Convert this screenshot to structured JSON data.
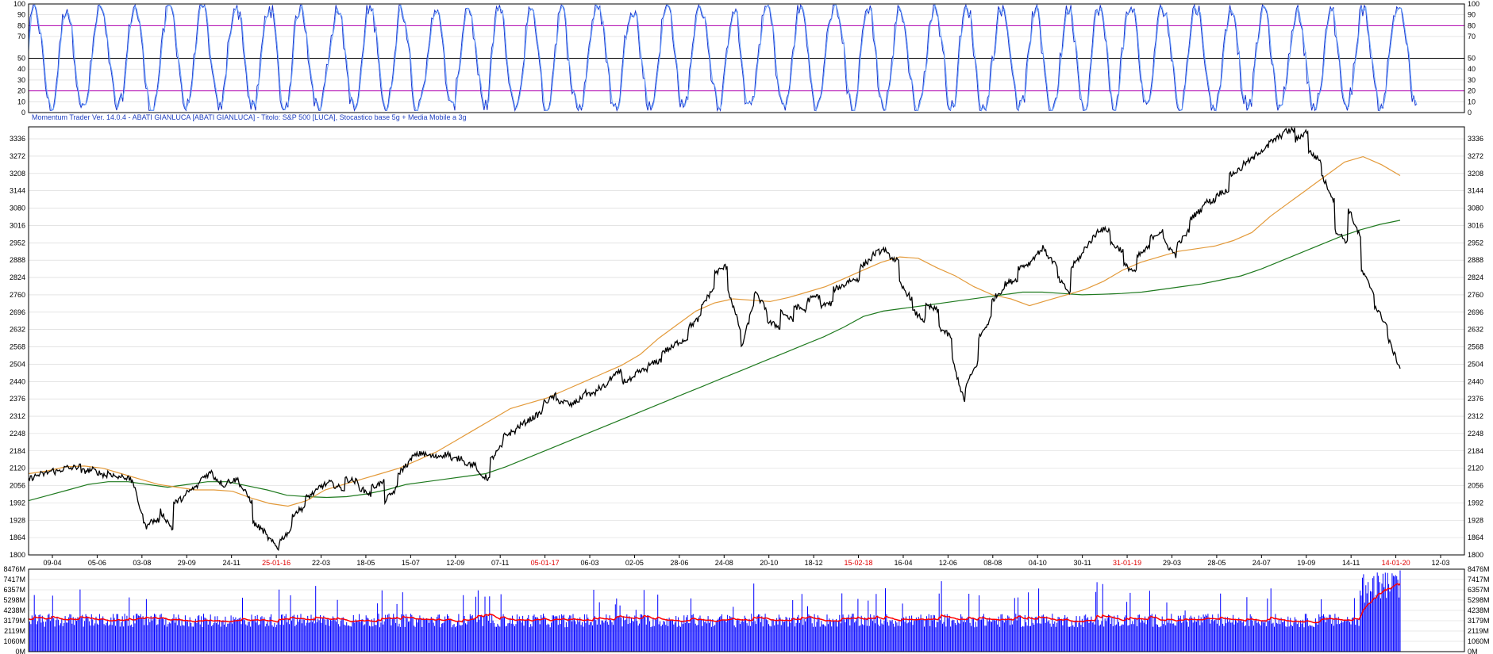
{
  "app": {
    "info_line": "Momentum Trader   Ver. 14.0.4  -  ABATI GIANLUCA  [ABATI GIANLUCA] - Titolo: S&P 500  [LUCA],    Stocastico  base 5g + Media Mobile a 3g"
  },
  "colors": {
    "price": "#000000",
    "ma_fast": "#e39a3a",
    "ma_slow": "#1f7a1f",
    "stoch": "#1a33cc",
    "stoch_bands": "#b000b0",
    "volume_bars": "#0000ff",
    "volume_ma": "#ff0000",
    "grid": "#d4d4d4",
    "highlight_date": "#e00000"
  },
  "chart_data": [
    {
      "type": "line",
      "panel": "stochastic",
      "ylim": [
        0,
        100
      ],
      "ytick_labels": [
        "0",
        "10",
        "20",
        "30",
        "40",
        "50",
        "70",
        "80",
        "90",
        "100"
      ],
      "reference_lines": [
        20,
        50,
        80
      ],
      "series": []
    },
    {
      "type": "line",
      "panel": "price",
      "ylim": [
        1800,
        3380
      ],
      "ytick_labels": [
        "1800",
        "1864",
        "1928",
        "1992",
        "2056",
        "2120",
        "2184",
        "2248",
        "2312",
        "2376",
        "2440",
        "2504",
        "2568",
        "2632",
        "2696",
        "2760",
        "2824",
        "2888",
        "2952",
        "3016",
        "3080",
        "3144",
        "3208",
        "3272",
        "3336"
      ],
      "x_tick_labels": [
        "09-04",
        "05-06",
        "03-08",
        "29-09",
        "24-11",
        "25-01-16",
        "22-03",
        "18-05",
        "15-07",
        "12-09",
        "07-11",
        "05-01-17",
        "06-03",
        "02-05",
        "28-06",
        "24-08",
        "20-10",
        "18-12",
        "15-02-18",
        "16-04",
        "12-06",
        "08-08",
        "04-10",
        "30-11",
        "31-01-19",
        "29-03",
        "28-05",
        "24-07",
        "19-09",
        "14-11",
        "14-01-20",
        "12-03"
      ],
      "x_tick_labels_red": [
        "25-01-16",
        "05-01-17",
        "15-02-18",
        "31-01-19",
        "14-01-20"
      ],
      "price_path": [
        [
          2080,
          2100
        ],
        [
          2096,
          2115
        ],
        [
          2105,
          2125
        ],
        [
          2118,
          2128
        ],
        [
          2108,
          2115
        ],
        [
          2110,
          2090
        ],
        [
          2105,
          2080
        ],
        [
          2095,
          2070
        ],
        [
          2050,
          1880
        ],
        [
          1920,
          1930
        ],
        [
          1960,
          1890
        ],
        [
          1990,
          2020
        ],
        [
          2030,
          2060
        ],
        [
          2080,
          2110
        ],
        [
          2090,
          2050
        ],
        [
          2070,
          2080
        ],
        [
          2060,
          1990
        ],
        [
          1920,
          1880
        ],
        [
          1870,
          1820
        ],
        [
          1850,
          1900
        ],
        [
          1950,
          1980
        ],
        [
          2010,
          2040
        ],
        [
          2050,
          2070
        ],
        [
          2060,
          2040
        ],
        [
          2080,
          2070
        ],
        [
          2050,
          2020
        ],
        [
          2050,
          2070
        ],
        [
          2000,
          2050
        ],
        [
          2100,
          2150
        ],
        [
          2160,
          2180
        ],
        [
          2170,
          2160
        ],
        [
          2165,
          2175
        ],
        [
          2150,
          2160
        ],
        [
          2140,
          2130
        ],
        [
          2100,
          2080
        ],
        [
          2150,
          2210
        ],
        [
          2240,
          2260
        ],
        [
          2270,
          2300
        ],
        [
          2300,
          2330
        ],
        [
          2360,
          2390
        ],
        [
          2370,
          2360
        ],
        [
          2350,
          2380
        ],
        [
          2400,
          2390
        ],
        [
          2410,
          2430
        ],
        [
          2450,
          2480
        ],
        [
          2440,
          2450
        ],
        [
          2470,
          2490
        ],
        [
          2500,
          2520
        ],
        [
          2550,
          2570
        ],
        [
          2580,
          2600
        ],
        [
          2640,
          2680
        ],
        [
          2720,
          2790
        ],
        [
          2840,
          2870
        ],
        [
          2780,
          2620
        ],
        [
          2560,
          2740
        ],
        [
          2770,
          2700
        ],
        [
          2660,
          2640
        ],
        [
          2700,
          2660
        ],
        [
          2720,
          2700
        ],
        [
          2740,
          2760
        ],
        [
          2720,
          2730
        ],
        [
          2780,
          2800
        ],
        [
          2810,
          2820
        ],
        [
          2860,
          2900
        ],
        [
          2910,
          2930
        ],
        [
          2910,
          2880
        ],
        [
          2800,
          2740
        ],
        [
          2700,
          2660
        ],
        [
          2720,
          2700
        ],
        [
          2640,
          2600
        ],
        [
          2520,
          2350
        ],
        [
          2420,
          2520
        ],
        [
          2600,
          2680
        ],
        [
          2740,
          2790
        ],
        [
          2800,
          2820
        ],
        [
          2860,
          2880
        ],
        [
          2890,
          2940
        ],
        [
          2920,
          2860
        ],
        [
          2820,
          2760
        ],
        [
          2860,
          2920
        ],
        [
          2930,
          2990
        ],
        [
          3000,
          3000
        ],
        [
          2950,
          2920
        ],
        [
          2870,
          2840
        ],
        [
          2900,
          2940
        ],
        [
          2970,
          3000
        ],
        [
          2960,
          2900
        ],
        [
          2940,
          3000
        ],
        [
          3040,
          3080
        ],
        [
          3100,
          3110
        ],
        [
          3130,
          3150
        ],
        [
          3200,
          3230
        ],
        [
          3240,
          3270
        ],
        [
          3280,
          3310
        ],
        [
          3320,
          3350
        ],
        [
          3360,
          3370
        ],
        [
          3330,
          3370
        ],
        [
          3290,
          3250
        ],
        [
          3200,
          3100
        ],
        [
          3000,
          2950
        ],
        [
          3080,
          2960
        ],
        [
          2850,
          2760
        ],
        [
          2720,
          2640
        ],
        [
          2600,
          2480
        ]
      ],
      "series": [
        {
          "values": [
            2000,
            2020,
            2040,
            2060,
            2070,
            2070,
            2060,
            2050,
            2060,
            2070,
            2070,
            2055,
            2040,
            2020,
            2015,
            2012,
            2015,
            2025,
            2040,
            2060,
            2070,
            2080,
            2090,
            2100,
            2125,
            2155,
            2185,
            2215,
            2245,
            2275,
            2305,
            2335,
            2365,
            2395,
            2425,
            2455,
            2485,
            2515,
            2545,
            2575,
            2605,
            2640,
            2680,
            2700,
            2710,
            2720,
            2730,
            2740,
            2750,
            2760,
            2770,
            2770,
            2765,
            2760,
            2762,
            2765,
            2770,
            2780,
            2790,
            2800,
            2815,
            2830,
            2855,
            2885,
            2915,
            2945,
            2975,
            3000,
            3020,
            3035
          ]
        },
        {
          "values": [
            2100,
            2110,
            2125,
            2128,
            2120,
            2100,
            2080,
            2060,
            2050,
            2040,
            2040,
            2035,
            2010,
            1990,
            1980,
            2000,
            2040,
            2060,
            2080,
            2100,
            2120,
            2150,
            2180,
            2220,
            2260,
            2300,
            2340,
            2360,
            2380,
            2410,
            2440,
            2470,
            2500,
            2540,
            2600,
            2650,
            2700,
            2730,
            2745,
            2740,
            2735,
            2750,
            2770,
            2790,
            2820,
            2850,
            2880,
            2900,
            2895,
            2860,
            2830,
            2790,
            2760,
            2745,
            2720,
            2740,
            2760,
            2780,
            2810,
            2850,
            2880,
            2900,
            2920,
            2930,
            2940,
            2960,
            2990,
            3050,
            3100,
            3150,
            3200,
            3250,
            3270,
            3240,
            3200
          ]
        }
      ]
    },
    {
      "type": "bar",
      "panel": "volume",
      "ylim": [
        0,
        8476
      ],
      "ytick_labels": [
        "0M",
        "1060M",
        "2119M",
        "3179M",
        "4238M",
        "5298M",
        "6357M",
        "7417M",
        "8476M"
      ],
      "series": []
    }
  ]
}
